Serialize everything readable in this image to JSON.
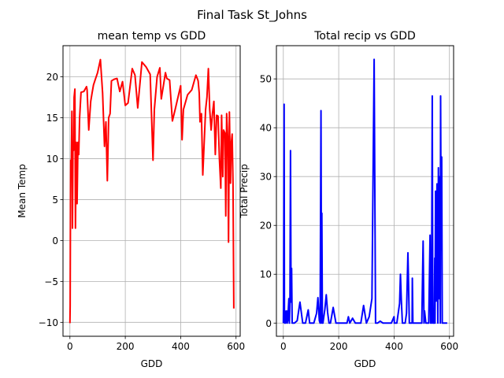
{
  "figure": {
    "suptitle": "Final Task   St_Johns"
  },
  "chart_data": [
    {
      "type": "line",
      "title": "mean temp vs GDD",
      "xlabel": "GDD",
      "ylabel": "Mean Temp",
      "xlim": [
        -25,
        615
      ],
      "ylim": [
        -11.7,
        23.8
      ],
      "xticks": [
        0,
        200,
        400,
        600
      ],
      "yticks": [
        -10,
        -5,
        0,
        5,
        10,
        15,
        20
      ],
      "grid": true,
      "color": "#ff0000",
      "series": [
        {
          "x": [
            0,
            1,
            2,
            3,
            5,
            7,
            9,
            11,
            13,
            15,
            18,
            20,
            23,
            26,
            29,
            32,
            35,
            40,
            50,
            60,
            62,
            68,
            75,
            80,
            85,
            90,
            100,
            110,
            118,
            125,
            130,
            135,
            140,
            145,
            150,
            160,
            170,
            180,
            190,
            200,
            210,
            225,
            235,
            245,
            260,
            275,
            290,
            300,
            305,
            315,
            325,
            330,
            345,
            350,
            360,
            370,
            380,
            400,
            405,
            410,
            425,
            440,
            455,
            460,
            463,
            467,
            470,
            475,
            480,
            490,
            495,
            500,
            505,
            510,
            515,
            520,
            525,
            530,
            535,
            540,
            545,
            548,
            552,
            555,
            560,
            563,
            566,
            570,
            573,
            576,
            580,
            583,
            586,
            589,
            592
          ],
          "y": [
            -10.1,
            -8.0,
            4.3,
            9.8,
            8.5,
            15.8,
            1.5,
            12.0,
            11.0,
            17.5,
            18.5,
            1.5,
            12.0,
            4.5,
            12.0,
            10.5,
            15.0,
            18.1,
            18.2,
            18.8,
            18.4,
            13.5,
            17.0,
            18.0,
            19.0,
            19.5,
            20.5,
            22.1,
            18.0,
            11.5,
            14.5,
            7.3,
            15.0,
            15.5,
            19.5,
            19.7,
            19.8,
            18.2,
            19.4,
            16.5,
            16.8,
            21.0,
            20.2,
            16.2,
            21.8,
            21.2,
            20.3,
            9.8,
            16.0,
            20.0,
            21.1,
            17.3,
            20.5,
            19.8,
            19.6,
            14.6,
            16.0,
            18.9,
            12.3,
            16.0,
            17.8,
            18.4,
            20.2,
            19.8,
            19.5,
            18.0,
            14.5,
            15.5,
            8.0,
            16.0,
            17.5,
            21.0,
            16.0,
            13.5,
            15.5,
            17.0,
            10.5,
            15.3,
            15.2,
            10.0,
            6.4,
            15.3,
            7.8,
            13.5,
            13.1,
            3.0,
            15.5,
            12.5,
            -0.2,
            15.7,
            7.0,
            12.0,
            13.0,
            7.0,
            -8.3
          ]
        }
      ]
    },
    {
      "type": "line",
      "title": "Total recip vs GDD",
      "xlabel": "GDD",
      "ylabel": "Total Precip",
      "xlim": [
        -25,
        615
      ],
      "ylim": [
        -2.7,
        56.8
      ],
      "xticks": [
        0,
        200,
        400,
        600
      ],
      "yticks": [
        0,
        10,
        20,
        30,
        40,
        50
      ],
      "grid": true,
      "color": "#0000ff",
      "series": [
        {
          "x": [
            0,
            1,
            2,
            3,
            4,
            5,
            6,
            8,
            10,
            12,
            14,
            16,
            20,
            22,
            24,
            26,
            28,
            30,
            32,
            35,
            40,
            50,
            60,
            70,
            75,
            80,
            90,
            95,
            100,
            110,
            120,
            125,
            130,
            133,
            136,
            138,
            139,
            141,
            143,
            150,
            155,
            160,
            165,
            170,
            180,
            190,
            200,
            220,
            230,
            235,
            240,
            250,
            260,
            270,
            280,
            290,
            300,
            310,
            320,
            328,
            333,
            336,
            340,
            350,
            360,
            370,
            380,
            390,
            400,
            401,
            402,
            410,
            420,
            423,
            426,
            430,
            440,
            445,
            450,
            455,
            460,
            465,
            466,
            468,
            470,
            472,
            475,
            480,
            485,
            490,
            500,
            505,
            508,
            510,
            515,
            520,
            525,
            530,
            532,
            535,
            538,
            540,
            543,
            545,
            547,
            548,
            550,
            552,
            555,
            558,
            560,
            562,
            565,
            567,
            568,
            570,
            572,
            574,
            575,
            576,
            578,
            580,
            582,
            585,
            588,
            590,
            592
          ],
          "y": [
            0,
            5,
            28,
            44.8,
            2,
            0,
            2.5,
            0,
            1,
            2.5,
            0,
            0.5,
            5,
            0,
            4.8,
            35.3,
            4.3,
            11.2,
            0,
            0,
            0,
            0.5,
            4.3,
            0,
            0,
            0,
            2.7,
            0,
            0,
            0,
            2,
            5.2,
            0.5,
            0,
            43.5,
            0,
            22.5,
            0,
            0,
            2.8,
            5.8,
            2.2,
            0,
            0,
            3.2,
            0,
            0,
            0,
            0,
            1.3,
            0,
            1,
            0,
            0,
            0,
            3.6,
            0,
            1.3,
            5,
            54,
            0,
            0,
            0,
            0.4,
            0,
            0,
            0,
            0,
            1.3,
            0,
            0,
            0,
            4,
            10,
            4.8,
            0,
            0,
            2,
            14.4,
            0,
            0,
            0,
            9.2,
            0,
            0,
            0,
            0,
            0,
            0,
            0,
            0,
            16.8,
            0,
            2.5,
            0,
            0,
            0,
            18,
            0,
            0,
            46.5,
            0,
            0,
            0,
            13.3,
            0,
            27,
            4.5,
            28.5,
            0,
            31.8,
            5,
            30,
            0,
            46.5,
            15,
            34,
            0,
            0,
            0,
            0,
            0,
            0,
            0,
            0,
            0,
            0
          ]
        }
      ]
    }
  ]
}
